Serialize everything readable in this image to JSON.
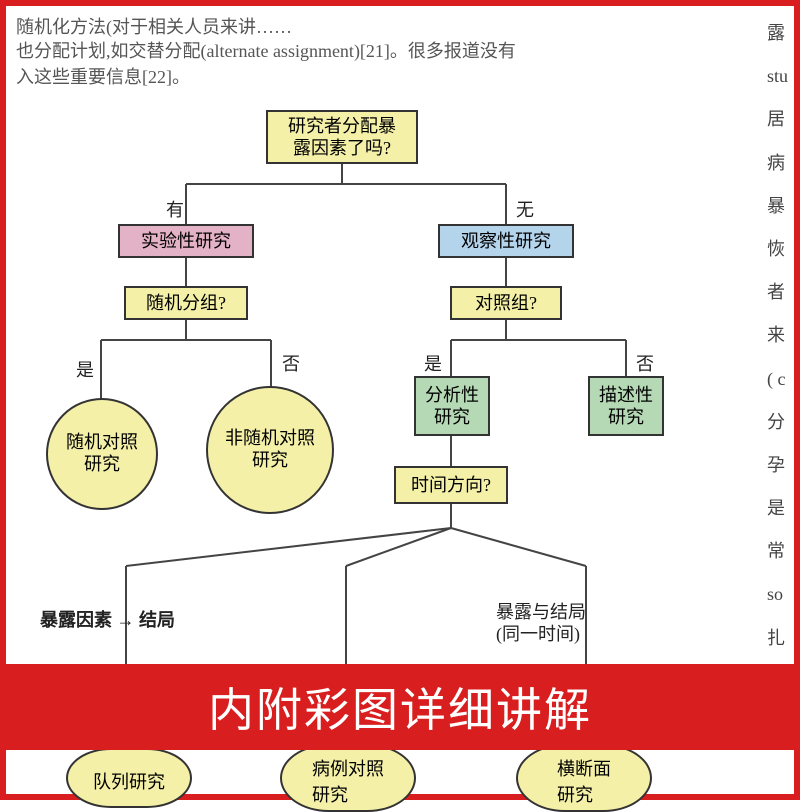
{
  "background_text": {
    "line1": "随机化方法(对于相关人员来讲……",
    "line2": "也分配计划,如交替分配(alternate assignment)[21]。很多报道没有",
    "line3": "入这些重要信息[22]。"
  },
  "side_text": [
    "露",
    "stu",
    "居",
    "病",
    "暴",
    "恢",
    "者",
    "",
    "来",
    "( c",
    "分",
    "孕",
    "",
    "是",
    "常",
    "so",
    "扎"
  ],
  "flowchart": {
    "root": {
      "text": "研究者分配暴\n露因素了吗?",
      "color": "yellow"
    },
    "branch_labels": {
      "yes": "有",
      "no": "无",
      "shi": "是",
      "fou": "否"
    },
    "left": {
      "study": {
        "text": "实验性研究",
        "color": "pink"
      },
      "random": {
        "text": "随机分组?",
        "color": "yellow"
      },
      "rct": {
        "text": "随机对照\n研究"
      },
      "nrct": {
        "text": "非随机对照\n研究"
      }
    },
    "right": {
      "study": {
        "text": "观察性研究",
        "color": "blue"
      },
      "control": {
        "text": "对照组?",
        "color": "yellow"
      },
      "analytic": {
        "text": "分析性\n研究",
        "color": "green"
      },
      "descrip": {
        "text": "描述性\n研究",
        "color": "green"
      },
      "time": {
        "text": "时间方向?",
        "color": "yellow"
      }
    },
    "bottom_labels": {
      "exposure_outcome": "暴露因素 → 结局",
      "same_time_l1": "暴露与结局",
      "same_time_l2": "(同一时间)"
    },
    "bottom_nodes": {
      "cohort": "队列研究",
      "case": "病例对照\n研究",
      "cross": "横断面\n研究"
    },
    "line_color": "#444444",
    "line_width": 2,
    "text_color": "#222222",
    "background_color": "#ffffff"
  },
  "banner": {
    "text": "内附彩图详细讲解",
    "bg": "#d81e1e",
    "fg": "#ffffff"
  }
}
